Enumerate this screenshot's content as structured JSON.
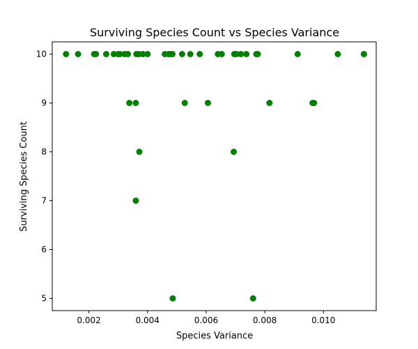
{
  "chart_data": {
    "type": "scatter",
    "title": "Surviving Species Count vs Species Variance",
    "xlabel": "Species Variance",
    "ylabel": "Surviving Species Count",
    "xlim": [
      0.00075,
      0.0118
    ],
    "ylim": [
      4.75,
      10.25
    ],
    "xticks": [
      0.002,
      0.004,
      0.006,
      0.008,
      0.01
    ],
    "xtick_labels": [
      "0.002",
      "0.004",
      "0.006",
      "0.008",
      "0.010"
    ],
    "yticks": [
      5,
      6,
      7,
      8,
      9,
      10
    ],
    "ytick_labels": [
      "5",
      "6",
      "7",
      "8",
      "9",
      "10"
    ],
    "grid": false,
    "marker_color": "#008000",
    "points": [
      {
        "x": 0.00122,
        "y": 10
      },
      {
        "x": 0.00163,
        "y": 10
      },
      {
        "x": 0.00218,
        "y": 10
      },
      {
        "x": 0.00224,
        "y": 10
      },
      {
        "x": 0.00259,
        "y": 10
      },
      {
        "x": 0.00285,
        "y": 10
      },
      {
        "x": 0.003,
        "y": 10
      },
      {
        "x": 0.00306,
        "y": 10
      },
      {
        "x": 0.00322,
        "y": 10
      },
      {
        "x": 0.00333,
        "y": 10
      },
      {
        "x": 0.00362,
        "y": 10
      },
      {
        "x": 0.0037,
        "y": 10
      },
      {
        "x": 0.00384,
        "y": 10
      },
      {
        "x": 0.004,
        "y": 10
      },
      {
        "x": 0.00459,
        "y": 10
      },
      {
        "x": 0.00472,
        "y": 10
      },
      {
        "x": 0.00478,
        "y": 10
      },
      {
        "x": 0.00485,
        "y": 10
      },
      {
        "x": 0.00518,
        "y": 10
      },
      {
        "x": 0.00546,
        "y": 10
      },
      {
        "x": 0.00578,
        "y": 10
      },
      {
        "x": 0.0064,
        "y": 10
      },
      {
        "x": 0.00653,
        "y": 10
      },
      {
        "x": 0.00696,
        "y": 10
      },
      {
        "x": 0.00703,
        "y": 10
      },
      {
        "x": 0.00718,
        "y": 10
      },
      {
        "x": 0.00737,
        "y": 10
      },
      {
        "x": 0.00771,
        "y": 10
      },
      {
        "x": 0.00776,
        "y": 10
      },
      {
        "x": 0.00912,
        "y": 10
      },
      {
        "x": 0.01049,
        "y": 10
      },
      {
        "x": 0.01138,
        "y": 10
      },
      {
        "x": 0.00338,
        "y": 9
      },
      {
        "x": 0.0036,
        "y": 9
      },
      {
        "x": 0.00527,
        "y": 9
      },
      {
        "x": 0.00606,
        "y": 9
      },
      {
        "x": 0.00816,
        "y": 9
      },
      {
        "x": 0.00963,
        "y": 9
      },
      {
        "x": 0.00968,
        "y": 9
      },
      {
        "x": 0.00372,
        "y": 8
      },
      {
        "x": 0.00694,
        "y": 8
      },
      {
        "x": 0.0036,
        "y": 7
      },
      {
        "x": 0.00486,
        "y": 5
      },
      {
        "x": 0.0076,
        "y": 5
      }
    ]
  }
}
